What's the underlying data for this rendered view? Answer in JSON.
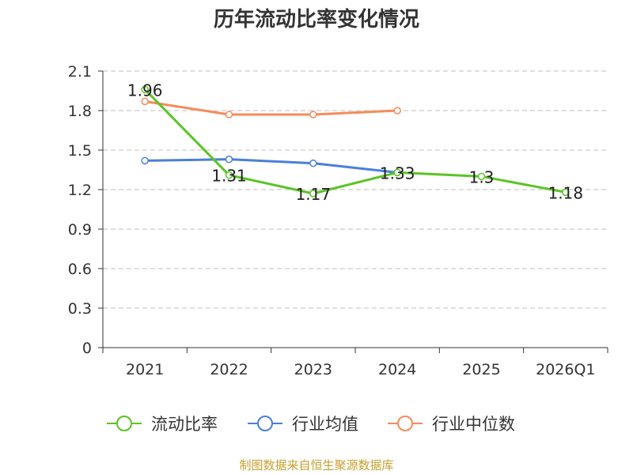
{
  "chart_data": {
    "type": "line",
    "title": "历年流动比率变化情况",
    "categories": [
      "2021",
      "2022",
      "2023",
      "2024",
      "2025",
      "2026Q1"
    ],
    "ylim": [
      0,
      2.1
    ],
    "yticks": [
      "0",
      "0.3",
      "0.6",
      "0.9",
      "1.2",
      "1.5",
      "1.8",
      "2.1"
    ],
    "grid": true,
    "legend_position": "bottom",
    "series": [
      {
        "name": "流动比率",
        "color": "#5bc424",
        "values": [
          1.96,
          1.31,
          1.17,
          1.33,
          1.3,
          1.18
        ],
        "labels": [
          "1.96",
          "1.31",
          "1.17",
          "1.33",
          "1.3",
          "1.18"
        ]
      },
      {
        "name": "行业均值",
        "color": "#4a7fdc",
        "values": [
          1.42,
          1.43,
          1.4,
          1.33,
          null,
          null
        ]
      },
      {
        "name": "行业中位数",
        "color": "#f58b5a",
        "values": [
          1.87,
          1.77,
          1.77,
          1.8,
          null,
          null
        ]
      }
    ]
  },
  "source_note": "制图数据来自恒生聚源数据库"
}
